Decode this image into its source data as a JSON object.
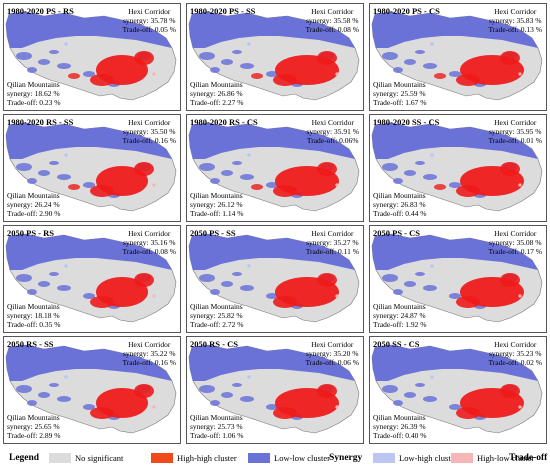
{
  "colors": {
    "no_significant": "#dcdcdc",
    "synergy_high_high": "#f04a1a",
    "synergy_low_low": "#6a72d8",
    "tradeoff_low_high": "#bcc6f2",
    "tradeoff_high_low": "#f6b6b6",
    "border": "#555555",
    "hotspot": "#ee1b1b"
  },
  "panels": [
    {
      "title": "1980-2020 PS - RS",
      "hexi_title": "Hexi Corridor",
      "hexi_synergy": "synergy: 35.78 %",
      "hexi_tradeoff": "Trade-off: 0.05 %",
      "qilian_title": "Qilian Mountains",
      "qilian_synergy": "synergy: 18.62 %",
      "qilian_tradeoff": "Trade-off: 0.23 %"
    },
    {
      "title": "1980-2020 PS - SS",
      "hexi_title": "Hexi Corridor",
      "hexi_synergy": "synergy: 35.58 %",
      "hexi_tradeoff": "Trade-off: 0.08 %",
      "qilian_title": "Qilian Mountains",
      "qilian_synergy": "synergy: 26.86 %",
      "qilian_tradeoff": "Trade-off: 2.27 %"
    },
    {
      "title": "1980-2020 PS - CS",
      "hexi_title": "Hexi Corridor",
      "hexi_synergy": "synergy: 35.83 %",
      "hexi_tradeoff": "Trade-off: 0.13 %",
      "qilian_title": "Qilian Mountains",
      "qilian_synergy": "synergy: 25.59 %",
      "qilian_tradeoff": "Trade-off: 1.67 %"
    },
    {
      "title": "1980-2020 RS - SS",
      "hexi_title": "Hexi Corridor",
      "hexi_synergy": "synergy: 35.50 %",
      "hexi_tradeoff": "Trade-off: 0.16 %",
      "qilian_title": "Qilian Mountains",
      "qilian_synergy": "synergy: 26.24 %",
      "qilian_tradeoff": "Trade-off: 2.90 %"
    },
    {
      "title": "1980-2020 RS - CS",
      "hexi_title": "Hexi Corridor",
      "hexi_synergy": "synergy: 35.91 %",
      "hexi_tradeoff": "Trade-off: 0.06%",
      "qilian_title": "Qilian Mountains",
      "qilian_synergy": "synergy: 26.12 %",
      "qilian_tradeoff": "Trade-off: 1.14 %"
    },
    {
      "title": "1980-2020 SS - CS",
      "hexi_title": "Hexi Corridor",
      "hexi_synergy": "synergy: 35.95 %",
      "hexi_tradeoff": "Trade-off: 0.01 %",
      "qilian_title": "Qilian Mountains",
      "qilian_synergy": "synergy: 26.83 %",
      "qilian_tradeoff": "Trade-off: 0.44 %"
    },
    {
      "title": "2050 PS - RS",
      "hexi_title": "Hexi Corridor",
      "hexi_synergy": "synergy: 35.16 %",
      "hexi_tradeoff": "Trade-off: 0.08 %",
      "qilian_title": "Qilian Mountains",
      "qilian_synergy": "synergy: 18.18 %",
      "qilian_tradeoff": "Trade-off: 0.35 %"
    },
    {
      "title": "2050 PS - SS",
      "hexi_title": "Hexi Corridor",
      "hexi_synergy": "synergy: 35.27 %",
      "hexi_tradeoff": "Trade-off: 0.11 %",
      "qilian_title": "Qilian Mountains",
      "qilian_synergy": "synergy: 25.82 %",
      "qilian_tradeoff": "Trade-off: 2.72 %"
    },
    {
      "title": "2050 PS - CS",
      "hexi_title": "Hexi Corridor",
      "hexi_synergy": "synergy: 35.08 %",
      "hexi_tradeoff": "Trade-off: 0.17 %",
      "qilian_title": "Qilian Mountains",
      "qilian_synergy": "synergy: 24.87 %",
      "qilian_tradeoff": "Trade-off: 1.92 %"
    },
    {
      "title": "2050 RS - SS",
      "hexi_title": "Hexi Corridor",
      "hexi_synergy": "synergy: 35.22 %",
      "hexi_tradeoff": "Trade-off: 0.16 %",
      "qilian_title": "Qilian Mountains",
      "qilian_synergy": "synergy: 25.65 %",
      "qilian_tradeoff": "Trade-off: 2.89 %"
    },
    {
      "title": "2050 RS - CS",
      "hexi_title": "Hexi Corridor",
      "hexi_synergy": "synergy: 35.20 %",
      "hexi_tradeoff": "Trade-off: 0.06 %",
      "qilian_title": "Qilian Mountains",
      "qilian_synergy": "synergy: 25.73 %",
      "qilian_tradeoff": "Trade-off: 1.06 %"
    },
    {
      "title": "2050 SS - CS",
      "hexi_title": "Hexi Corridor",
      "hexi_synergy": "synergy: 35.23 %",
      "hexi_tradeoff": "Trade-off: 0.02 %",
      "qilian_title": "Qilian Mountains",
      "qilian_synergy": "synergy: 26.39 %",
      "qilian_tradeoff": "Trade-off: 0.40 %"
    }
  ],
  "legend": {
    "title": "Legend",
    "no_significant": "No significant",
    "high_high": "High-high cluster",
    "low_low": "Low-low cluster",
    "synergy_label": "Synergy",
    "low_high": "Low-high cluster",
    "high_low": "High-low cluster",
    "tradeoff_label": "Trade-off"
  }
}
